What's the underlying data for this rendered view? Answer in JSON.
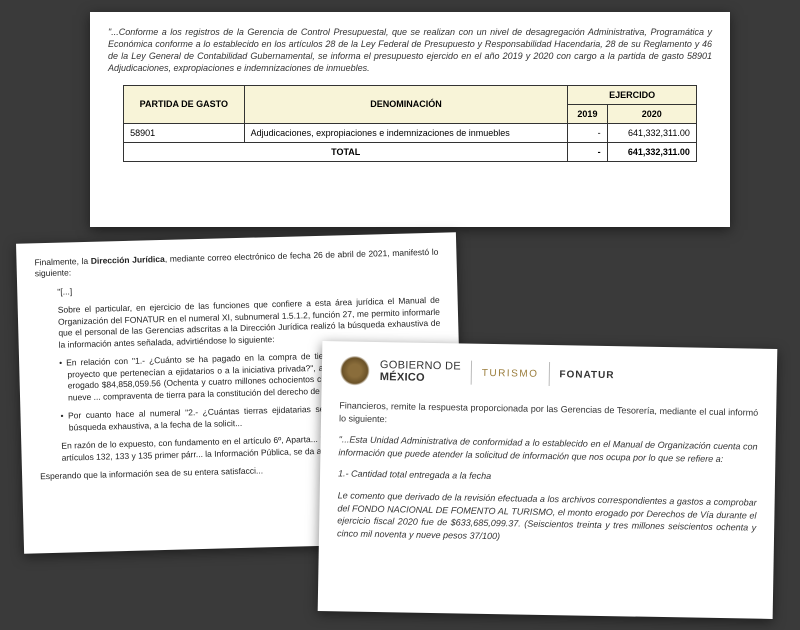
{
  "doc1": {
    "intro": "\"...Conforme a los registros de la Gerencia de Control Presupuestal, que se realizan con un nivel de desagregación Administrativa, Programática y Económica conforme a lo establecido en los artículos 28 de la Ley Federal de Presupuesto y Responsabilidad Hacendaria, 28 de su Reglamento y 46 de la Ley General de Contabilidad Gubernamental, se informa el presupuesto ejercido en el año 2019 y 2020 con cargo a la partida de gasto 58901 Adjudicaciones, expropiaciones e indemnizaciones de inmuebles.",
    "table": {
      "headers": {
        "partida": "PARTIDA DE GASTO",
        "denom": "DENOMINACIÓN",
        "ejercido": "EJERCIDO",
        "y2019": "2019",
        "y2020": "2020"
      },
      "row": {
        "partida": "58901",
        "denom": "Adjudicaciones, expropiaciones e indemnizaciones de inmuebles",
        "v2019": "-",
        "v2020": "641,332,311.00"
      },
      "total": {
        "label": "TOTAL",
        "v2019": "-",
        "v2020": "641,332,311.00"
      }
    }
  },
  "doc2": {
    "p1a": "Finalmente, la ",
    "p1b": "Dirección Jurídica",
    "p1c": ", mediante correo electrónico de fecha 26 de abril de 2021, manifestó lo siguiente:",
    "p2": "\"[...]",
    "p3": "Sobre el particular, en ejercicio de las funciones que confiere a esta área jurídica el Manual de Organización del FONATUR en el numeral XI, subnumeral 1.5.1.2, función 27, me permito informarle que el personal de las Gerencias adscritas a la Dirección Jurídica realizó la búsqueda exhaustiva de la información antes señalada, advirtiéndose lo siguiente:",
    "p4": "• En relación con \"1.- ¿Cuánto se ha pagado en la compra de tierras para incorporarlas a este proyecto que pertenecían a ejidatarios o a la iniciativa privada?\", a la fecha de la solicitud se han erogado $84,858,059.56 (Ochenta y cuatro millones ochocientos cincuenta y ocho mil cincuenta y nueve ... compraventa de tierra para la constitución del derecho de vía del pr...",
    "p5": "• Por cuanto hace al numeral \"2.- ¿Cuántas tierras ejidatarias se h... después de realizar una búsqueda exhaustiva, a la fecha de la solicit...",
    "p6": "En razón de lo expuesto, con fundamento en el artículo 6º, Aparta... Estados Unidos Mexicanos y los artículos 132, 133 y 135 primer párr... la Información Pública, se da atención a la solicitud de mérito.",
    "p7": "Esperando que la información sea de su entera satisfacci..."
  },
  "doc3": {
    "logos": {
      "gob1": "GOBIERNO DE",
      "gob2": "MÉXICO",
      "turismo": "TURISMO",
      "fonatur": "FONATUR"
    },
    "p1": "Financieros, remite la respuesta proporcionada por las Gerencias de Tesorería, mediante el cual informó lo siguiente:",
    "p2": "\"...Esta Unidad Administrativa de conformidad a lo establecido en el Manual de Organización cuenta con información que puede atender la solicitud de información que nos ocupa por lo que se refiere a:",
    "p3": "1.- Cantidad total entregada a la fecha",
    "p4": "Le comento que derivado de la revisión efectuada a los archivos correspondientes a gastos a comprobar del FONDO NACIONAL DE FOMENTO AL TURISMO, el monto erogado por Derechos de Vía durante el ejercicio fiscal 2020 fue de $633,685,099.37. (Seiscientos treinta y tres millones seiscientos ochenta y cinco mil noventa y nueve pesos 37/100)"
  }
}
